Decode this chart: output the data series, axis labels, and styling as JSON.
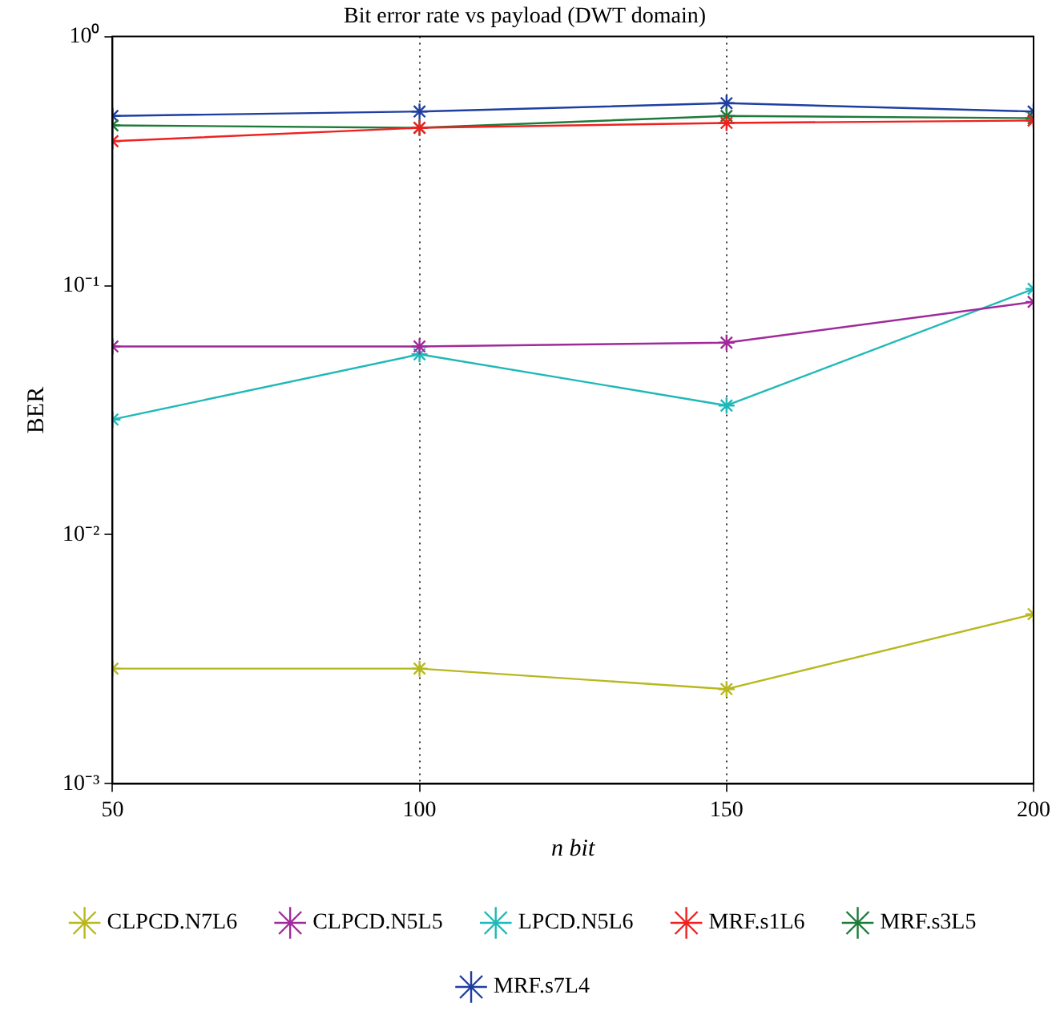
{
  "chart_data": {
    "type": "line",
    "title": "Bit error rate vs payload (DWT domain)",
    "xlabel": "n bit",
    "ylabel": "BER",
    "x": [
      50,
      100,
      150,
      200
    ],
    "xlim": [
      50,
      200
    ],
    "xticks": [
      50,
      100,
      150,
      200
    ],
    "ylim": [
      0.001,
      1
    ],
    "yticks": [
      {
        "value": 0.001,
        "label": "10⁻³"
      },
      {
        "value": 0.01,
        "label": "10⁻²"
      },
      {
        "value": 0.1,
        "label": "10⁻¹"
      },
      {
        "value": 1,
        "label": "10⁰"
      }
    ],
    "log": "y",
    "grid": "x",
    "legend": "bottom",
    "marker": "cross",
    "line_style": "solid",
    "series": [
      {
        "name": "MRF.s7L4",
        "color": "#1f3fa0",
        "values": [
          0.48,
          0.5,
          0.54,
          0.5
        ]
      },
      {
        "name": "MRF.s3L5",
        "color": "#1e7a3a",
        "values": [
          0.44,
          0.43,
          0.48,
          0.47
        ]
      },
      {
        "name": "MRF.s1L6",
        "color": "#f02020",
        "values": [
          0.38,
          0.43,
          0.45,
          0.46
        ]
      },
      {
        "name": "LPCD.N5L6",
        "color": "#20b8b8",
        "values": [
          0.029,
          0.053,
          0.033,
          0.097
        ]
      },
      {
        "name": "CLPCD.N5L5",
        "color": "#a02a9a",
        "values": [
          0.057,
          0.057,
          0.059,
          0.086
        ]
      },
      {
        "name": "CLPCD.N7L6",
        "color": "#b8b820",
        "values": [
          0.0029,
          0.0029,
          0.0024,
          0.0048
        ]
      }
    ]
  }
}
